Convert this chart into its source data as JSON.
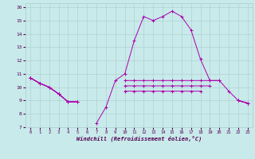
{
  "x": [
    0,
    1,
    2,
    3,
    4,
    5,
    6,
    7,
    8,
    9,
    10,
    11,
    12,
    13,
    14,
    15,
    16,
    17,
    18,
    19,
    20,
    21,
    22,
    23
  ],
  "line1": [
    10.7,
    10.3,
    10.0,
    9.5,
    8.9,
    8.9,
    null,
    7.3,
    8.5,
    10.5,
    11.0,
    13.5,
    15.3,
    15.0,
    15.3,
    15.7,
    15.3,
    14.3,
    12.1,
    10.5,
    10.5,
    9.7,
    9.0,
    8.8
  ],
  "line2": [
    10.7,
    10.3,
    10.0,
    9.5,
    8.9,
    8.9,
    null,
    null,
    null,
    null,
    10.5,
    10.5,
    10.5,
    10.5,
    10.5,
    10.5,
    10.5,
    10.5,
    10.5,
    10.5,
    10.5,
    null,
    9.0,
    8.8
  ],
  "line3": [
    10.7,
    10.3,
    10.0,
    9.5,
    8.9,
    8.9,
    null,
    null,
    null,
    null,
    10.1,
    10.1,
    10.1,
    10.1,
    10.1,
    10.1,
    10.1,
    10.1,
    10.1,
    10.1,
    null,
    null,
    9.0,
    8.8
  ],
  "line4": [
    10.7,
    10.3,
    10.0,
    9.5,
    8.9,
    8.9,
    null,
    null,
    null,
    null,
    9.7,
    9.7,
    9.7,
    9.7,
    9.7,
    9.7,
    9.7,
    9.7,
    9.7,
    null,
    null,
    null,
    9.0,
    8.8
  ],
  "bg_color": "#c8eaea",
  "grid_color": "#aacccc",
  "line_color": "#aa00aa",
  "xlabel": "Windchill (Refroidissement éolien,°C)",
  "xlim": [
    -0.5,
    23.5
  ],
  "ylim": [
    7,
    16.3
  ],
  "yticks": [
    7,
    8,
    9,
    10,
    11,
    12,
    13,
    14,
    15,
    16
  ],
  "xticks": [
    0,
    1,
    2,
    3,
    4,
    5,
    6,
    7,
    8,
    9,
    10,
    11,
    12,
    13,
    14,
    15,
    16,
    17,
    18,
    19,
    20,
    21,
    22,
    23
  ]
}
